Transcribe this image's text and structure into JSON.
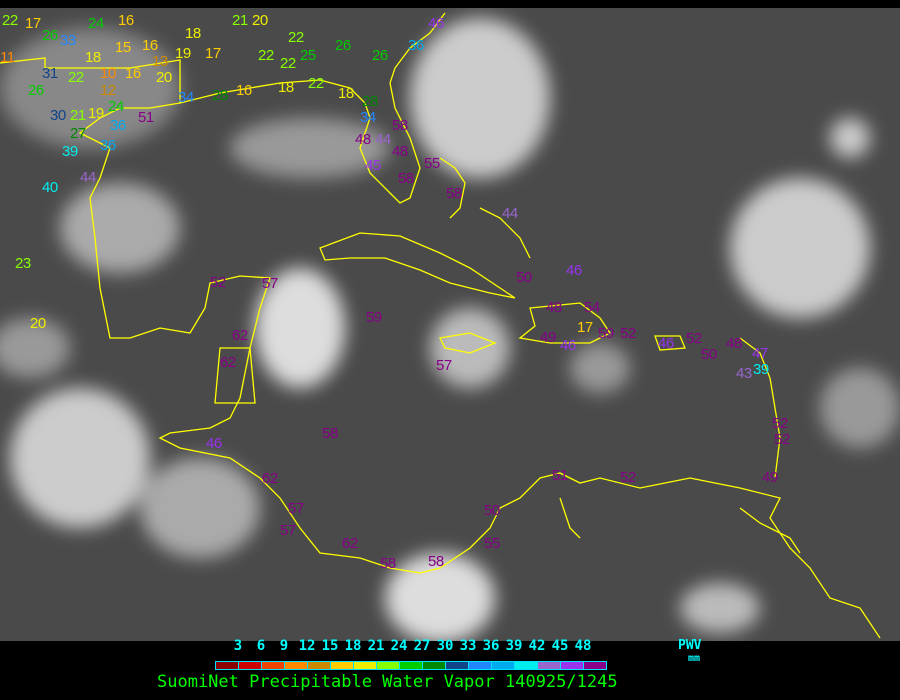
{
  "title": "SuomiNet Precipitable Water Vapor 140925/1245",
  "legend": {
    "ticks": [
      "3",
      "6",
      "9",
      "12",
      "15",
      "18",
      "21",
      "24",
      "27",
      "30",
      "33",
      "36",
      "39",
      "42",
      "45",
      "48"
    ],
    "unit_label": "PWV",
    "unit": "mm",
    "colors": [
      "#8b0000",
      "#cc0000",
      "#ee4400",
      "#ff8800",
      "#cc8800",
      "#ffcc00",
      "#eeee00",
      "#88ff00",
      "#00cc00",
      "#008800",
      "#114488",
      "#2288ff",
      "#00aaee",
      "#00eeee",
      "#9966cc",
      "#9933ee",
      "#880088"
    ]
  },
  "coastline_color": "#ffff00",
  "stations": [
    "22",
    "17",
    "26",
    "33",
    "24",
    "16",
    "15",
    "16",
    "18",
    "18",
    "31",
    "22",
    "10",
    "16",
    "13",
    "20",
    "19",
    "17",
    "21",
    "20",
    "22",
    "22",
    "22",
    "25",
    "26",
    "26",
    "36",
    "46",
    "26",
    "12",
    "24",
    "34",
    "28",
    "16",
    "18",
    "22",
    "18",
    "28",
    "34",
    "30",
    "21",
    "19",
    "51",
    "36",
    "27",
    "39",
    "36",
    "40",
    "44",
    "58",
    "48",
    "44",
    "48",
    "55",
    "45",
    "58",
    "58",
    "44",
    "11",
    "23",
    "20",
    "50",
    "46",
    "48",
    "54",
    "17",
    "49",
    "46",
    "59",
    "52",
    "46",
    "52",
    "50",
    "48",
    "47",
    "39",
    "43",
    "52",
    "52",
    "49",
    "51",
    "52",
    "52",
    "57",
    "59",
    "62",
    "62",
    "57",
    "46",
    "58",
    "62",
    "57",
    "57",
    "62",
    "58",
    "58",
    "50",
    "55"
  ]
}
